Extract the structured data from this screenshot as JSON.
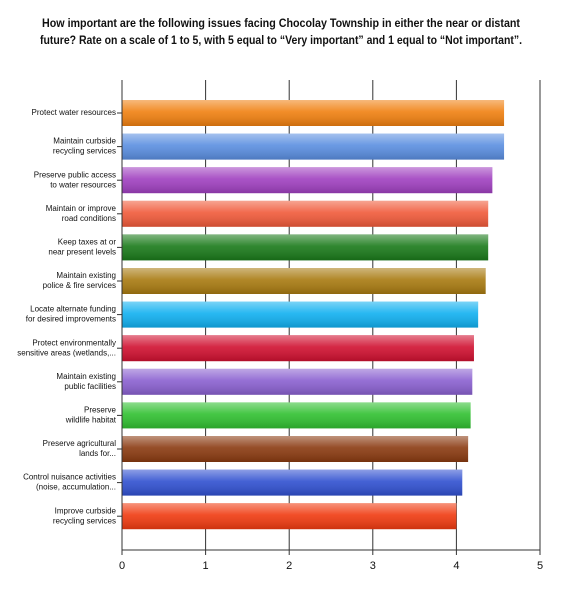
{
  "chart_data": {
    "type": "hbar",
    "title": [
      "How important are the following issues facing Chocolay Township in either the near or distant",
      "future? Rate on a scale of 1 to 5, with 5 equal to “Very important” and 1 equal to “Not important”."
    ],
    "categories": [
      [
        "Protect water resources"
      ],
      [
        "Maintain curbside",
        "recycling services"
      ],
      [
        "Preserve public access",
        "to water resources"
      ],
      [
        "Maintain or improve",
        "road conditions"
      ],
      [
        "Keep taxes at or",
        "near present levels"
      ],
      [
        "Maintain existing",
        "police & fire services"
      ],
      [
        "Locate alternate funding",
        "for desired improvements"
      ],
      [
        "Protect environmentally",
        "sensitive areas (wetlands,..."
      ],
      [
        "Maintain existing",
        "public facilities"
      ],
      [
        "Preserve",
        "wildlife habitat"
      ],
      [
        "Preserve agricultural",
        "lands for..."
      ],
      [
        "Control nuisance activities",
        "(noise, accumulation..."
      ],
      [
        "Improve curbside",
        "recycling services"
      ]
    ],
    "values": [
      4.57,
      4.57,
      4.43,
      4.38,
      4.38,
      4.35,
      4.26,
      4.21,
      4.19,
      4.17,
      4.14,
      4.07,
      4.0
    ],
    "colors": [
      "#f08010",
      "#5a8ee0",
      "#a040c0",
      "#f05a3a",
      "#1a7a1a",
      "#a87a10",
      "#10b0f0",
      "#d01030",
      "#8a60d0",
      "#30c030",
      "#8a3a10",
      "#3050d0",
      "#f03a10"
    ],
    "xlim": [
      0,
      5
    ],
    "xticks": [
      0,
      1,
      2,
      3,
      4,
      5
    ],
    "grid": true
  }
}
